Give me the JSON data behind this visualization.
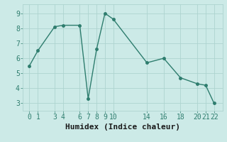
{
  "x": [
    0,
    1,
    3,
    4,
    6,
    7,
    8,
    9,
    10,
    14,
    16,
    18,
    20,
    21,
    22
  ],
  "y": [
    5.5,
    6.5,
    8.1,
    8.2,
    8.2,
    3.3,
    6.6,
    9.0,
    8.6,
    5.7,
    6.0,
    4.7,
    4.3,
    4.2,
    3.0
  ],
  "line_color": "#2e7d6e",
  "marker": "o",
  "markersize": 2.5,
  "linewidth": 1.0,
  "bg_color": "#cceae7",
  "grid_color": "#aed4d0",
  "xlabel": "Humidex (Indice chaleur)",
  "xlabel_fontsize": 8,
  "xticks": [
    0,
    1,
    3,
    4,
    6,
    7,
    8,
    9,
    10,
    14,
    16,
    18,
    20,
    21,
    22
  ],
  "yticks": [
    3,
    4,
    5,
    6,
    7,
    8,
    9
  ],
  "xlim": [
    -0.8,
    23.0
  ],
  "ylim": [
    2.5,
    9.6
  ],
  "tick_fontsize": 7
}
